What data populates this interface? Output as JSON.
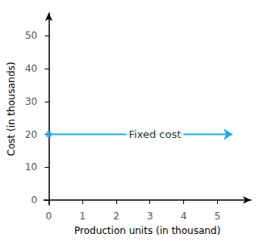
{
  "chart_data": {
    "type": "line",
    "xlabel": "Production units (in thousand)",
    "ylabel": "Cost (in thousands)",
    "xlim": [
      -0.15,
      6.0
    ],
    "ylim": [
      -1.5,
      57
    ],
    "xticks": [
      0,
      1,
      2,
      3,
      4,
      5
    ],
    "yticks": [
      0,
      10,
      20,
      30,
      40,
      50
    ],
    "grid": false,
    "series": [
      {
        "type": "line",
        "color": "#29abe2",
        "x": [
          0,
          5.45
        ],
        "values": [
          20,
          20
        ]
      },
      {
        "type": "scatter",
        "color": "#29abe2",
        "marker": "circle",
        "x": [
          0.0
        ],
        "values": [
          20
        ]
      },
      {
        "type": "scatter",
        "color": "#29abe2",
        "marker": "open_circle",
        "x": [
          5.56
        ],
        "values": [
          20
        ]
      }
    ],
    "annotations": [
      {
        "text": "Fixed cost",
        "x": 2.3,
        "y": 20
      }
    ]
  }
}
